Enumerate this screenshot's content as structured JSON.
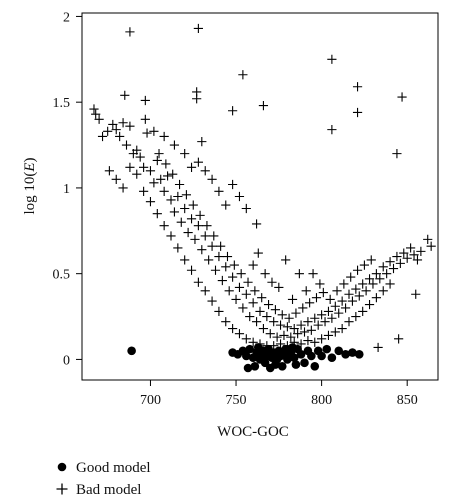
{
  "chart_data": {
    "type": "scatter",
    "xlabel": "WOC-GOC",
    "ylabel": "log 10(",
    "ylabel_italic": "E",
    "ylabel_close": ")",
    "xlim": [
      660,
      868
    ],
    "ylim": [
      -0.12,
      2.02
    ],
    "xticks": [
      700,
      750,
      800,
      850
    ],
    "yticks": [
      0,
      0.5,
      1,
      1.5,
      2
    ],
    "xtick_labels": [
      "700",
      "750",
      "800",
      "850"
    ],
    "ytick_labels": [
      "0",
      "0.5",
      "1",
      "1.5",
      "2"
    ],
    "legend": {
      "position": "bottom-left"
    },
    "series": [
      {
        "name": "Good model",
        "marker": "filled-circle",
        "color": "#000000",
        "points": [
          [
            689,
            0.05
          ],
          [
            748,
            0.04
          ],
          [
            751,
            0.03
          ],
          [
            754,
            0.05
          ],
          [
            756,
            0.02
          ],
          [
            758,
            0.06
          ],
          [
            760,
            0.01
          ],
          [
            761,
            -0.04
          ],
          [
            762,
            0.04
          ],
          [
            763,
            0.07
          ],
          [
            764,
            0.0
          ],
          [
            765,
            0.03
          ],
          [
            766,
            0.05
          ],
          [
            767,
            -0.02
          ],
          [
            768,
            0.02
          ],
          [
            769,
            0.06
          ],
          [
            770,
            -0.05
          ],
          [
            771,
            0.01
          ],
          [
            772,
            0.04
          ],
          [
            773,
            -0.03
          ],
          [
            774,
            0.0
          ],
          [
            775,
            0.05
          ],
          [
            776,
            0.02
          ],
          [
            777,
            -0.04
          ],
          [
            778,
            0.03
          ],
          [
            779,
            0.06
          ],
          [
            780,
            0.0
          ],
          [
            782,
            0.04
          ],
          [
            784,
            0.01
          ],
          [
            786,
            0.06
          ],
          [
            788,
            0.03
          ],
          [
            790,
            -0.02
          ],
          [
            792,
            0.05
          ],
          [
            794,
            0.02
          ],
          [
            796,
            -0.04
          ],
          [
            798,
            0.05
          ],
          [
            800,
            0.02
          ],
          [
            803,
            0.06
          ],
          [
            806,
            0.01
          ],
          [
            810,
            0.05
          ],
          [
            814,
            0.03
          ],
          [
            818,
            0.04
          ],
          [
            822,
            0.03
          ],
          [
            757,
            -0.05
          ],
          [
            785,
            -0.03
          ],
          [
            783,
            0.07
          ]
        ]
      },
      {
        "name": "Bad model",
        "marker": "plus",
        "color": "#000000",
        "points": [
          [
            688,
            1.91
          ],
          [
            728,
            1.93
          ],
          [
            806,
            1.75
          ],
          [
            754,
            1.66
          ],
          [
            821,
            1.59
          ],
          [
            727,
            1.56
          ],
          [
            727,
            1.52
          ],
          [
            685,
            1.54
          ],
          [
            697,
            1.51
          ],
          [
            766,
            1.48
          ],
          [
            847,
            1.53
          ],
          [
            821,
            1.44
          ],
          [
            748,
            1.45
          ],
          [
            806,
            1.34
          ],
          [
            844,
            1.2
          ],
          [
            730,
            1.27
          ],
          [
            667,
            1.46
          ],
          [
            668,
            1.43
          ],
          [
            670,
            1.4
          ],
          [
            672,
            1.3
          ],
          [
            675,
            1.33
          ],
          [
            678,
            1.37
          ],
          [
            680,
            1.34
          ],
          [
            682,
            1.3
          ],
          [
            684,
            1.38
          ],
          [
            686,
            1.25
          ],
          [
            688,
            1.36
          ],
          [
            690,
            1.2
          ],
          [
            692,
            1.22
          ],
          [
            694,
            1.18
          ],
          [
            696,
            1.12
          ],
          [
            698,
            1.32
          ],
          [
            700,
            1.1
          ],
          [
            702,
            1.03
          ],
          [
            704,
            1.16
          ],
          [
            706,
            1.05
          ],
          [
            708,
            0.98
          ],
          [
            710,
            1.07
          ],
          [
            712,
            0.93
          ],
          [
            714,
            0.86
          ],
          [
            716,
            0.95
          ],
          [
            718,
            0.8
          ],
          [
            720,
            0.88
          ],
          [
            722,
            0.74
          ],
          [
            724,
            0.82
          ],
          [
            726,
            0.7
          ],
          [
            728,
            0.78
          ],
          [
            730,
            0.64
          ],
          [
            732,
            0.72
          ],
          [
            734,
            0.58
          ],
          [
            736,
            0.66
          ],
          [
            738,
            0.52
          ],
          [
            740,
            0.6
          ],
          [
            742,
            0.46
          ],
          [
            744,
            0.54
          ],
          [
            746,
            0.4
          ],
          [
            748,
            0.48
          ],
          [
            750,
            0.35
          ],
          [
            752,
            0.42
          ],
          [
            754,
            0.3
          ],
          [
            756,
            0.38
          ],
          [
            758,
            0.25
          ],
          [
            760,
            0.33
          ],
          [
            762,
            0.22
          ],
          [
            764,
            0.28
          ],
          [
            766,
            0.18
          ],
          [
            768,
            0.25
          ],
          [
            770,
            0.15
          ],
          [
            772,
            0.22
          ],
          [
            774,
            0.13
          ],
          [
            776,
            0.2
          ],
          [
            778,
            0.14
          ],
          [
            780,
            0.19
          ],
          [
            782,
            0.13
          ],
          [
            784,
            0.18
          ],
          [
            786,
            0.15
          ],
          [
            788,
            0.2
          ],
          [
            790,
            0.16
          ],
          [
            792,
            0.22
          ],
          [
            794,
            0.17
          ],
          [
            796,
            0.24
          ],
          [
            798,
            0.2
          ],
          [
            800,
            0.26
          ],
          [
            802,
            0.22
          ],
          [
            804,
            0.28
          ],
          [
            806,
            0.24
          ],
          [
            808,
            0.31
          ],
          [
            810,
            0.27
          ],
          [
            812,
            0.34
          ],
          [
            814,
            0.3
          ],
          [
            816,
            0.38
          ],
          [
            818,
            0.34
          ],
          [
            820,
            0.41
          ],
          [
            822,
            0.37
          ],
          [
            824,
            0.44
          ],
          [
            826,
            0.4
          ],
          [
            828,
            0.47
          ],
          [
            830,
            0.44
          ],
          [
            832,
            0.5
          ],
          [
            834,
            0.47
          ],
          [
            836,
            0.54
          ],
          [
            838,
            0.5
          ],
          [
            840,
            0.57
          ],
          [
            842,
            0.53
          ],
          [
            844,
            0.6
          ],
          [
            846,
            0.56
          ],
          [
            848,
            0.62
          ],
          [
            850,
            0.59
          ],
          [
            852,
            0.65
          ],
          [
            854,
            0.61
          ],
          [
            856,
            0.58
          ],
          [
            858,
            0.63
          ],
          [
            862,
            0.7
          ],
          [
            864,
            0.66
          ],
          [
            855,
            0.38
          ],
          [
            845,
            0.12
          ],
          [
            833,
            0.07
          ],
          [
            676,
            1.1
          ],
          [
            680,
            1.05
          ],
          [
            684,
            1.0
          ],
          [
            688,
            1.12
          ],
          [
            692,
            1.08
          ],
          [
            696,
            0.98
          ],
          [
            700,
            0.92
          ],
          [
            704,
            0.85
          ],
          [
            708,
            0.78
          ],
          [
            712,
            0.72
          ],
          [
            716,
            0.65
          ],
          [
            720,
            0.58
          ],
          [
            724,
            0.52
          ],
          [
            728,
            0.45
          ],
          [
            732,
            0.4
          ],
          [
            736,
            0.34
          ],
          [
            740,
            0.28
          ],
          [
            744,
            0.22
          ],
          [
            748,
            0.18
          ],
          [
            752,
            0.15
          ],
          [
            756,
            0.12
          ],
          [
            760,
            0.1
          ],
          [
            764,
            0.09
          ],
          [
            768,
            0.08
          ],
          [
            772,
            0.08
          ],
          [
            776,
            0.09
          ],
          [
            780,
            0.08
          ],
          [
            784,
            0.1
          ],
          [
            788,
            0.09
          ],
          [
            792,
            0.11
          ],
          [
            796,
            0.1
          ],
          [
            800,
            0.12
          ],
          [
            804,
            0.14
          ],
          [
            808,
            0.16
          ],
          [
            812,
            0.18
          ],
          [
            816,
            0.22
          ],
          [
            820,
            0.25
          ],
          [
            824,
            0.28
          ],
          [
            828,
            0.32
          ],
          [
            832,
            0.36
          ],
          [
            836,
            0.4
          ],
          [
            840,
            0.44
          ],
          [
            705,
            1.2
          ],
          [
            709,
            1.14
          ],
          [
            713,
            1.08
          ],
          [
            717,
            1.02
          ],
          [
            721,
            0.96
          ],
          [
            725,
            0.9
          ],
          [
            729,
            0.84
          ],
          [
            733,
            0.78
          ],
          [
            737,
            0.72
          ],
          [
            741,
            0.66
          ],
          [
            745,
            0.6
          ],
          [
            749,
            0.55
          ],
          [
            753,
            0.5
          ],
          [
            757,
            0.45
          ],
          [
            761,
            0.4
          ],
          [
            765,
            0.36
          ],
          [
            769,
            0.32
          ],
          [
            773,
            0.29
          ],
          [
            777,
            0.26
          ],
          [
            781,
            0.24
          ],
          [
            785,
            0.27
          ],
          [
            789,
            0.3
          ],
          [
            793,
            0.33
          ],
          [
            797,
            0.36
          ],
          [
            801,
            0.39
          ],
          [
            805,
            0.35
          ],
          [
            809,
            0.4
          ],
          [
            813,
            0.44
          ],
          [
            817,
            0.48
          ],
          [
            821,
            0.52
          ],
          [
            825,
            0.55
          ],
          [
            829,
            0.58
          ],
          [
            760,
            0.55
          ],
          [
            763,
            0.62
          ],
          [
            767,
            0.5
          ],
          [
            771,
            0.45
          ],
          [
            775,
            0.42
          ],
          [
            779,
            0.58
          ],
          [
            783,
            0.35
          ],
          [
            787,
            0.5
          ],
          [
            791,
            0.4
          ],
          [
            795,
            0.5
          ],
          [
            799,
            0.44
          ],
          [
            762,
            0.79
          ],
          [
            756,
            0.88
          ],
          [
            752,
            0.95
          ],
          [
            748,
            1.02
          ],
          [
            744,
            0.9
          ],
          [
            740,
            0.98
          ],
          [
            736,
            1.05
          ],
          [
            732,
            1.1
          ],
          [
            728,
            1.15
          ],
          [
            724,
            1.12
          ],
          [
            720,
            1.2
          ],
          [
            714,
            1.25
          ],
          [
            708,
            1.3
          ],
          [
            702,
            1.33
          ],
          [
            697,
            1.4
          ]
        ]
      }
    ]
  },
  "legend": [
    {
      "label": "Good model",
      "marker": "filled-circle"
    },
    {
      "label": "Bad model",
      "marker": "plus"
    }
  ]
}
